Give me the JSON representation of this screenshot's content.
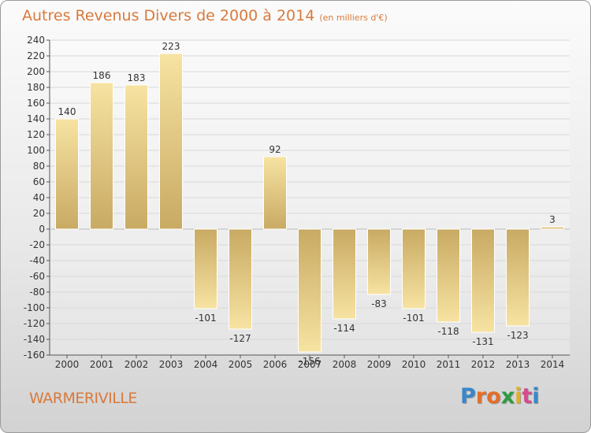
{
  "header": {
    "title": "Autres Revenus Divers de 2000 à 2014",
    "subtitle": "(en milliers d'€)"
  },
  "footer": {
    "town": "WARMERIVILLE",
    "logo_letters": [
      "P",
      "r",
      "o",
      "x",
      "i",
      "t",
      "i"
    ],
    "logo_colors": [
      "#3a87c9",
      "#e46e2a",
      "#e46e2a",
      "#2f9b45",
      "#e0b020",
      "#d64a8e",
      "#3a87c9"
    ]
  },
  "chart_data": {
    "type": "bar",
    "title": "Autres Revenus Divers de 2000 à 2014",
    "categories": [
      "2000",
      "2001",
      "2002",
      "2003",
      "2004",
      "2005",
      "2006",
      "2007",
      "2008",
      "2009",
      "2010",
      "2011",
      "2012",
      "2013",
      "2014"
    ],
    "values": [
      140,
      186,
      183,
      223,
      -101,
      -127,
      92,
      -156,
      -114,
      -83,
      -101,
      -118,
      -131,
      -123,
      3
    ],
    "data_labels": [
      "140",
      "186",
      "183",
      "223",
      "-101",
      "-127",
      "92",
      "-156",
      "-114",
      "-83",
      "-101",
      "-118",
      "-131",
      "-123",
      "3"
    ],
    "ylim": [
      -160,
      240
    ],
    "yticks": [
      -160,
      -140,
      -120,
      -100,
      -80,
      -60,
      -40,
      -20,
      0,
      20,
      40,
      60,
      80,
      100,
      120,
      140,
      160,
      180,
      200,
      220,
      240
    ],
    "grid": true,
    "colors": {
      "bar_light": "#f7e3a2",
      "bar_dark": "#c8aa63",
      "grid": "#d8d8d8",
      "axis": "#555555",
      "text": "#333333"
    }
  }
}
